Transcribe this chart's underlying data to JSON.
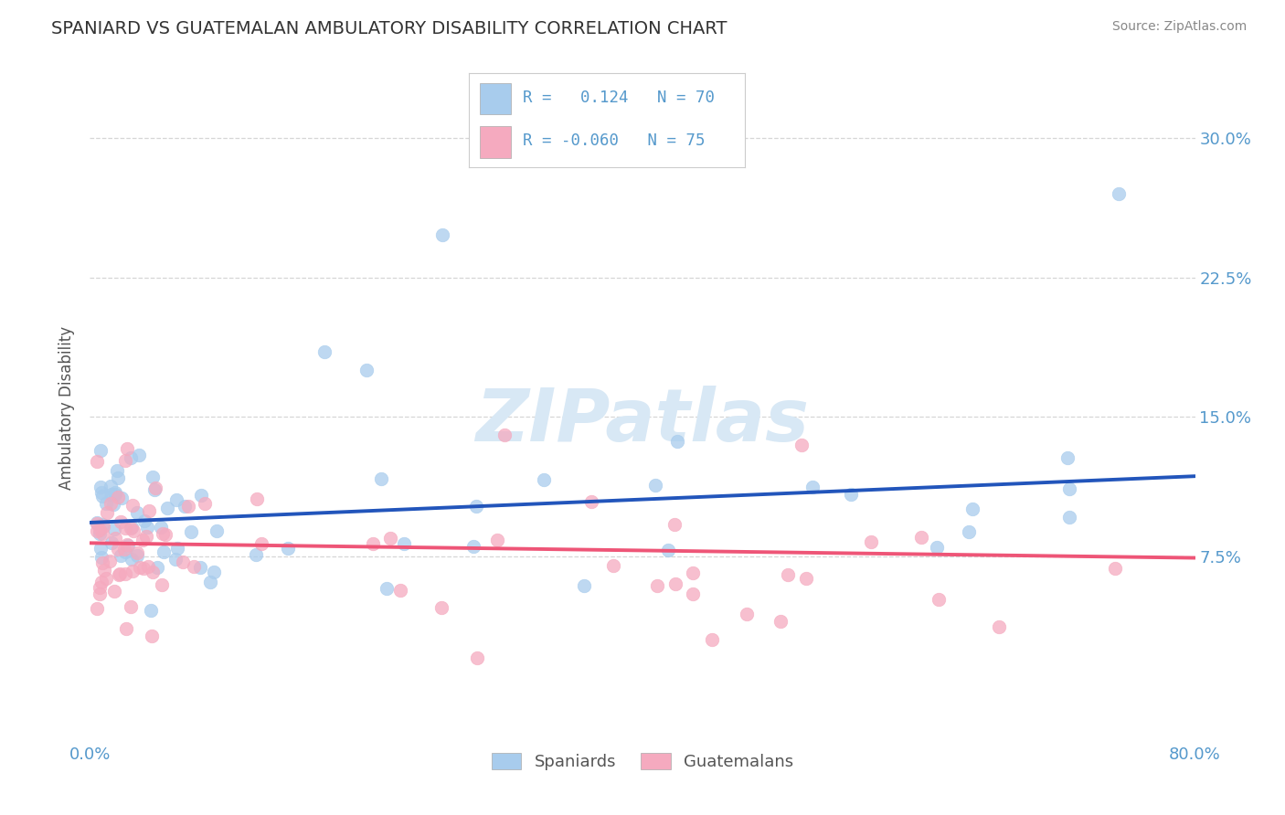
{
  "title": "SPANIARD VS GUATEMALAN AMBULATORY DISABILITY CORRELATION CHART",
  "source": "Source: ZipAtlas.com",
  "ylabel": "Ambulatory Disability",
  "ytick_labels": [
    "7.5%",
    "15.0%",
    "22.5%",
    "30.0%"
  ],
  "ytick_values": [
    0.075,
    0.15,
    0.225,
    0.3
  ],
  "xlim": [
    0.0,
    0.8
  ],
  "ylim": [
    -0.025,
    0.335
  ],
  "spaniard_R": 0.124,
  "spaniard_N": 70,
  "guatemalan_R": -0.06,
  "guatemalan_N": 75,
  "spaniard_color": "#A8CCED",
  "guatemalan_color": "#F5AABF",
  "spaniard_line_color": "#2255BB",
  "guatemalan_line_color": "#EE5577",
  "background_color": "#FFFFFF",
  "watermark": "ZIPatlas",
  "watermark_color": "#D8E8F5",
  "grid_color": "#CCCCCC",
  "title_color": "#333333",
  "axis_label_color": "#5599CC",
  "legend_text_color": "#5599CC",
  "sp_line_y0": 0.093,
  "sp_line_y1": 0.118,
  "gt_line_y0": 0.082,
  "gt_line_y1": 0.074
}
